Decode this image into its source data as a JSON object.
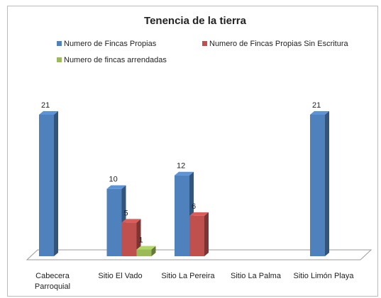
{
  "chart_data": {
    "type": "bar3d",
    "title": "Tenencia de la tierra",
    "categories": [
      "Cabecera Parroquial",
      "Sitio El Vado",
      "Sitio La Pereira",
      "Sitio La Palma",
      "Sitio Limón Playa"
    ],
    "series": [
      {
        "name": "Numero de Fincas Propias",
        "color": "#4f81bd",
        "values": [
          21,
          10,
          12,
          null,
          21
        ]
      },
      {
        "name": "Numero de Fincas Propias Sin Escritura",
        "color": "#c0504d",
        "values": [
          null,
          5,
          6,
          null,
          null
        ]
      },
      {
        "name": "Numero de fincas arrendadas",
        "color": "#9bbb59",
        "values": [
          null,
          1,
          null,
          null,
          null
        ]
      }
    ]
  }
}
